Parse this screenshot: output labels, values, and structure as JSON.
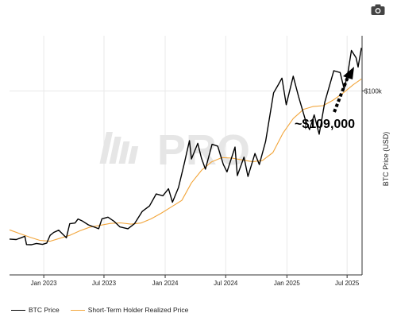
{
  "colors": {
    "btc": "#000000",
    "sth": "#f2a53a",
    "grid": "#e9e9e9",
    "axis": "#333333",
    "watermark": "#e6e6e6"
  },
  "toolbar": {
    "camera_icon": "camera-icon"
  },
  "watermark": {
    "text": "PRO",
    "icon": "logo-mark"
  },
  "chart_data": {
    "type": "line",
    "title": "",
    "xlabel": "",
    "ylabel": "BTC Price (USD)",
    "y_axis_side": "right",
    "grid": true,
    "legend_position": "bottom-left",
    "x_range": [
      "2022-09-20",
      "2025-08-15"
    ],
    "ylim": [
      0,
      130000
    ],
    "x_ticks": [
      {
        "date": "2023-01-01",
        "label": "Jan 2023"
      },
      {
        "date": "2023-07-01",
        "label": "Jul 2023"
      },
      {
        "date": "2024-01-01",
        "label": "Jan 2024"
      },
      {
        "date": "2024-07-01",
        "label": "Jul 2024"
      },
      {
        "date": "2025-01-01",
        "label": "Jan 2025"
      },
      {
        "date": "2025-07-01",
        "label": "Jul 2025"
      }
    ],
    "y_ticks": [
      {
        "value": 100000,
        "label": "$100k"
      }
    ],
    "series": [
      {
        "name": "BTC Price",
        "color": "#000000",
        "points": [
          [
            "2022-09-20",
            19500
          ],
          [
            "2022-10-10",
            19200
          ],
          [
            "2022-10-25",
            20200
          ],
          [
            "2022-11-05",
            21000
          ],
          [
            "2022-11-10",
            16500
          ],
          [
            "2022-11-25",
            16400
          ],
          [
            "2022-12-10",
            17100
          ],
          [
            "2022-12-28",
            16600
          ],
          [
            "2023-01-10",
            17300
          ],
          [
            "2023-01-20",
            21500
          ],
          [
            "2023-01-31",
            23100
          ],
          [
            "2023-02-15",
            24300
          ],
          [
            "2023-03-10",
            20200
          ],
          [
            "2023-03-20",
            27800
          ],
          [
            "2023-04-05",
            28200
          ],
          [
            "2023-04-14",
            30400
          ],
          [
            "2023-04-28",
            29200
          ],
          [
            "2023-05-15",
            27200
          ],
          [
            "2023-06-15",
            25100
          ],
          [
            "2023-06-25",
            30500
          ],
          [
            "2023-07-13",
            31400
          ],
          [
            "2023-07-31",
            29200
          ],
          [
            "2023-08-18",
            26100
          ],
          [
            "2023-09-11",
            25100
          ],
          [
            "2023-10-01",
            27900
          ],
          [
            "2023-10-24",
            34500
          ],
          [
            "2023-11-15",
            37500
          ],
          [
            "2023-12-05",
            44000
          ],
          [
            "2023-12-25",
            43000
          ],
          [
            "2024-01-11",
            46800
          ],
          [
            "2024-01-23",
            39500
          ],
          [
            "2024-02-10",
            47500
          ],
          [
            "2024-02-28",
            61000
          ],
          [
            "2024-03-14",
            73000
          ],
          [
            "2024-03-20",
            63000
          ],
          [
            "2024-04-08",
            71500
          ],
          [
            "2024-04-19",
            63500
          ],
          [
            "2024-05-01",
            57500
          ],
          [
            "2024-05-21",
            71000
          ],
          [
            "2024-06-07",
            70000
          ],
          [
            "2024-06-24",
            60000
          ],
          [
            "2024-07-05",
            56000
          ],
          [
            "2024-07-29",
            69500
          ],
          [
            "2024-08-05",
            54000
          ],
          [
            "2024-08-25",
            64000
          ],
          [
            "2024-09-06",
            53500
          ],
          [
            "2024-09-27",
            66000
          ],
          [
            "2024-10-10",
            60000
          ],
          [
            "2024-10-29",
            72500
          ],
          [
            "2024-11-12",
            88000
          ],
          [
            "2024-11-22",
            99000
          ],
          [
            "2024-12-05",
            103000
          ],
          [
            "2024-12-17",
            107000
          ],
          [
            "2024-12-30",
            92500
          ],
          [
            "2025-01-20",
            108000
          ],
          [
            "2025-02-05",
            97000
          ],
          [
            "2025-02-26",
            84000
          ],
          [
            "2025-03-10",
            79000
          ],
          [
            "2025-03-24",
            87000
          ],
          [
            "2025-04-08",
            76500
          ],
          [
            "2025-04-25",
            94000
          ],
          [
            "2025-05-22",
            111000
          ],
          [
            "2025-06-10",
            110000
          ],
          [
            "2025-06-22",
            101000
          ],
          [
            "2025-07-03",
            109500
          ],
          [
            "2025-07-14",
            122000
          ],
          [
            "2025-07-28",
            118000
          ],
          [
            "2025-08-03",
            113000
          ],
          [
            "2025-08-13",
            123500
          ]
        ]
      },
      {
        "name": "Short-Term Holder Realized Price",
        "color": "#f2a53a",
        "points": [
          [
            "2022-09-20",
            24500
          ],
          [
            "2022-10-20",
            22500
          ],
          [
            "2022-11-20",
            20500
          ],
          [
            "2022-12-20",
            18800
          ],
          [
            "2023-01-20",
            18300
          ],
          [
            "2023-02-20",
            20000
          ],
          [
            "2023-03-20",
            21500
          ],
          [
            "2023-04-20",
            24000
          ],
          [
            "2023-05-20",
            26000
          ],
          [
            "2023-06-20",
            27000
          ],
          [
            "2023-07-20",
            28000
          ],
          [
            "2023-08-20",
            28300
          ],
          [
            "2023-09-20",
            27600
          ],
          [
            "2023-10-20",
            28200
          ],
          [
            "2023-11-20",
            30500
          ],
          [
            "2023-12-20",
            33500
          ],
          [
            "2024-01-20",
            37000
          ],
          [
            "2024-02-20",
            40500
          ],
          [
            "2024-03-20",
            50000
          ],
          [
            "2024-04-20",
            57000
          ],
          [
            "2024-05-20",
            61500
          ],
          [
            "2024-06-20",
            63800
          ],
          [
            "2024-07-20",
            63500
          ],
          [
            "2024-08-20",
            62500
          ],
          [
            "2024-09-20",
            61500
          ],
          [
            "2024-10-20",
            62300
          ],
          [
            "2024-11-20",
            66500
          ],
          [
            "2024-12-20",
            77000
          ],
          [
            "2025-01-20",
            85000
          ],
          [
            "2025-02-20",
            90000
          ],
          [
            "2025-03-20",
            91500
          ],
          [
            "2025-04-20",
            92000
          ],
          [
            "2025-05-20",
            95000
          ],
          [
            "2025-06-20",
            99000
          ],
          [
            "2025-07-20",
            103500
          ],
          [
            "2025-08-13",
            106500
          ]
        ]
      }
    ],
    "annotations": [
      {
        "text": "~$109,000",
        "target_date": "2025-08-10",
        "target_value": 107000
      }
    ]
  }
}
